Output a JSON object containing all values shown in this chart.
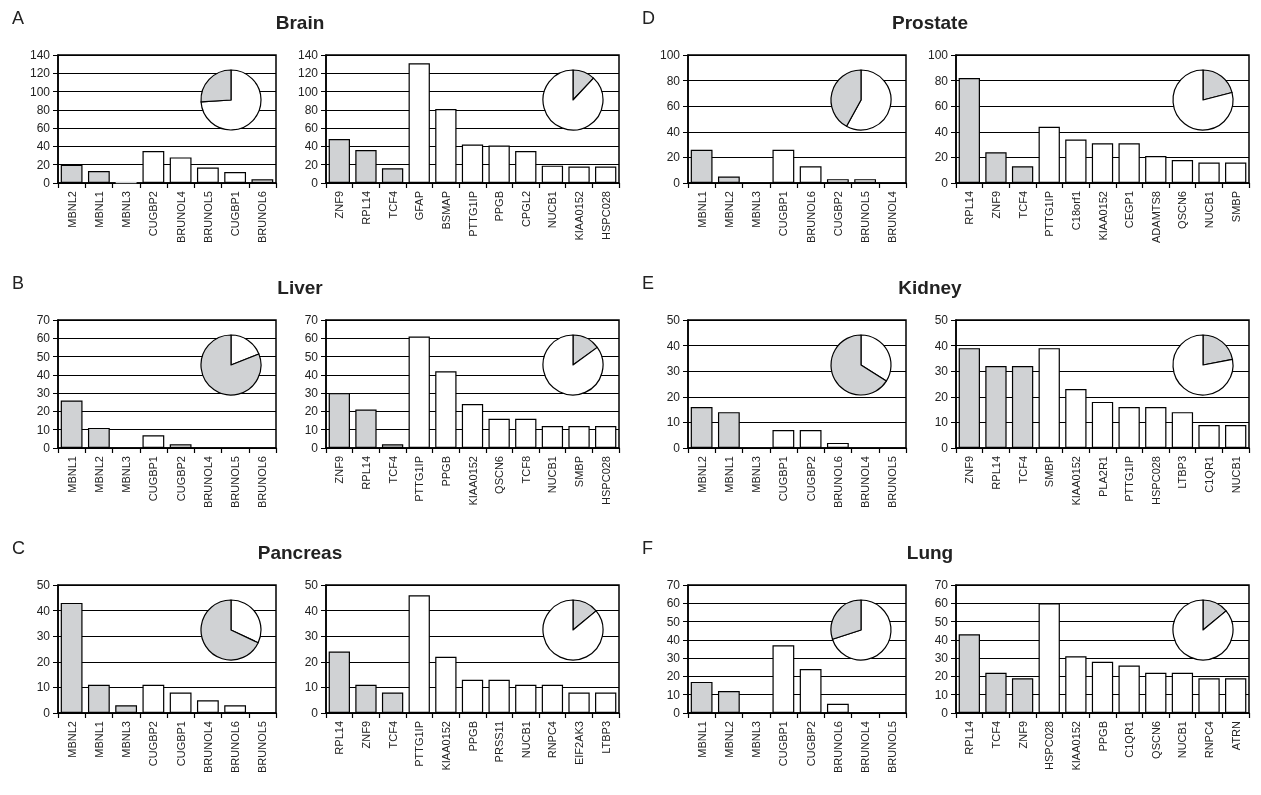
{
  "chart_data": [
    {
      "type": "bar",
      "title": "Brain",
      "annotations": [
        "A"
      ],
      "categories": [
        "MBNL2",
        "MBNL1",
        "MBNL3",
        "CUGBP2",
        "BRUNOL4",
        "BRUNOL5",
        "CUGBP1",
        "BRUNOL6"
      ],
      "values": [
        20,
        13,
        1,
        35,
        28,
        17,
        12,
        4
      ],
      "colors": [
        "#d0d2d4",
        "#d0d2d4",
        "#d0d2d4",
        "#ffffff",
        "#ffffff",
        "#ffffff",
        "#ffffff",
        "#ffffff"
      ],
      "ylim": [
        0,
        140
      ],
      "yticks": [
        0,
        20,
        40,
        60,
        80,
        100,
        120,
        140
      ],
      "grid": "y"
    },
    {
      "type": "pie",
      "categories": [
        null,
        null
      ],
      "values": [
        74,
        26
      ],
      "colors": [
        "#ffffff",
        "#d0d2d4"
      ]
    },
    {
      "type": "bar",
      "categories": [
        "ZNF9",
        "RPL14",
        "TCF4",
        "GFAP",
        "BSMAP",
        "PTTG1IP",
        "PPGB",
        "CPGL2",
        "NUCB1",
        "KIAA0152",
        "HSPC028"
      ],
      "values": [
        48,
        36,
        16,
        131,
        81,
        42,
        41,
        35,
        19,
        18,
        18
      ],
      "colors": [
        "#d0d2d4",
        "#d0d2d4",
        "#d0d2d4",
        "#ffffff",
        "#ffffff",
        "#ffffff",
        "#ffffff",
        "#ffffff",
        "#ffffff",
        "#ffffff",
        "#ffffff"
      ],
      "ylim": [
        0,
        140
      ],
      "yticks": [
        0,
        20,
        40,
        60,
        80,
        100,
        120,
        140
      ],
      "grid": "y"
    },
    {
      "type": "pie",
      "categories": [
        null,
        null
      ],
      "values": [
        12,
        88
      ],
      "colors": [
        "#d0d2d4",
        "#ffffff"
      ]
    },
    {
      "type": "bar",
      "title": "Prostate",
      "annotations": [
        "D"
      ],
      "categories": [
        "MBNL1",
        "MBNL2",
        "MBNL3",
        "CUGBP1",
        "BRUNOL6",
        "CUGBP2",
        "BRUNOL5",
        "BRUNOL4"
      ],
      "values": [
        26,
        5,
        0,
        26,
        13,
        3,
        3,
        0
      ],
      "colors": [
        "#d0d2d4",
        "#d0d2d4",
        "#d0d2d4",
        "#ffffff",
        "#ffffff",
        "#ffffff",
        "#ffffff",
        "#ffffff"
      ],
      "ylim": [
        0,
        100
      ],
      "yticks": [
        0,
        20,
        40,
        60,
        80,
        100
      ],
      "grid": "y"
    },
    {
      "type": "pie",
      "categories": [
        null,
        null
      ],
      "values": [
        58,
        42
      ],
      "colors": [
        "#ffffff",
        "#d0d2d4"
      ]
    },
    {
      "type": "bar",
      "categories": [
        "RPL14",
        "ZNF9",
        "TCF4",
        "PTTG1IP",
        "C18orf1",
        "KIAA0152",
        "CEGP1",
        "ADAMTS8",
        "QSCN6",
        "NUCB1",
        "SMBP"
      ],
      "values": [
        82,
        24,
        13,
        44,
        34,
        31,
        31,
        21,
        18,
        16,
        16
      ],
      "colors": [
        "#d0d2d4",
        "#d0d2d4",
        "#d0d2d4",
        "#ffffff",
        "#ffffff",
        "#ffffff",
        "#ffffff",
        "#ffffff",
        "#ffffff",
        "#ffffff",
        "#ffffff"
      ],
      "ylim": [
        0,
        100
      ],
      "yticks": [
        0,
        20,
        40,
        60,
        80,
        100
      ],
      "grid": "y"
    },
    {
      "type": "pie",
      "categories": [
        null,
        null
      ],
      "values": [
        21,
        79
      ],
      "colors": [
        "#d0d2d4",
        "#ffffff"
      ]
    },
    {
      "type": "bar",
      "title": "Liver",
      "annotations": [
        "B"
      ],
      "categories": [
        "MBNL1",
        "MBNL2",
        "MBNL3",
        "CUGBP1",
        "CUGBP2",
        "BRUNOL4",
        "BRUNOL5",
        "BRUNOL6"
      ],
      "values": [
        26,
        11,
        0,
        7,
        2,
        0,
        0,
        0
      ],
      "colors": [
        "#d0d2d4",
        "#d0d2d4",
        "#d0d2d4",
        "#ffffff",
        "#ffffff",
        "#ffffff",
        "#ffffff",
        "#ffffff"
      ],
      "ylim": [
        0,
        70
      ],
      "yticks": [
        0,
        10,
        20,
        30,
        40,
        50,
        60,
        70
      ],
      "grid": "y"
    },
    {
      "type": "pie",
      "categories": [
        null,
        null
      ],
      "values": [
        19,
        81
      ],
      "colors": [
        "#ffffff",
        "#d0d2d4"
      ]
    },
    {
      "type": "bar",
      "categories": [
        "ZNF9",
        "RPL14",
        "TCF4",
        "PTTG1IP",
        "PPGB",
        "KIAA0152",
        "QSCN6",
        "TCF8",
        "NUCB1",
        "SMBP",
        "HSPC028"
      ],
      "values": [
        30,
        21,
        2,
        61,
        42,
        24,
        16,
        16,
        12,
        12,
        12
      ],
      "colors": [
        "#d0d2d4",
        "#d0d2d4",
        "#d0d2d4",
        "#ffffff",
        "#ffffff",
        "#ffffff",
        "#ffffff",
        "#ffffff",
        "#ffffff",
        "#ffffff",
        "#ffffff"
      ],
      "ylim": [
        0,
        70
      ],
      "yticks": [
        0,
        10,
        20,
        30,
        40,
        50,
        60,
        70
      ],
      "grid": "y"
    },
    {
      "type": "pie",
      "categories": [
        null,
        null
      ],
      "values": [
        15,
        85
      ],
      "colors": [
        "#d0d2d4",
        "#ffffff"
      ]
    },
    {
      "type": "bar",
      "title": "Kidney",
      "annotations": [
        "E"
      ],
      "categories": [
        "MBNL2",
        "MBNL1",
        "MBNL3",
        "CUGBP1",
        "CUGBP2",
        "BRUNOL6",
        "BRUNOL4",
        "BRUNOL5"
      ],
      "values": [
        16,
        14,
        0,
        7,
        7,
        2,
        0,
        0
      ],
      "colors": [
        "#d0d2d4",
        "#d0d2d4",
        "#d0d2d4",
        "#ffffff",
        "#ffffff",
        "#ffffff",
        "#ffffff",
        "#ffffff"
      ],
      "ylim": [
        0,
        50
      ],
      "yticks": [
        0,
        10,
        20,
        30,
        40,
        50
      ],
      "grid": "y"
    },
    {
      "type": "pie",
      "categories": [
        null,
        null
      ],
      "values": [
        34,
        66
      ],
      "colors": [
        "#ffffff",
        "#d0d2d4"
      ]
    },
    {
      "type": "bar",
      "categories": [
        "ZNF9",
        "RPL14",
        "TCF4",
        "SMBP",
        "KIAA0152",
        "PLA2R1",
        "PTTG1IP",
        "HSPC028",
        "LTBP3",
        "C1QR1",
        "NUCB1"
      ],
      "values": [
        39,
        32,
        32,
        39,
        23,
        18,
        16,
        16,
        14,
        9,
        9
      ],
      "colors": [
        "#d0d2d4",
        "#d0d2d4",
        "#d0d2d4",
        "#ffffff",
        "#ffffff",
        "#ffffff",
        "#ffffff",
        "#ffffff",
        "#ffffff",
        "#ffffff",
        "#ffffff"
      ],
      "ylim": [
        0,
        50
      ],
      "yticks": [
        0,
        10,
        20,
        30,
        40,
        50
      ],
      "grid": "y"
    },
    {
      "type": "pie",
      "categories": [
        null,
        null
      ],
      "values": [
        22,
        78
      ],
      "colors": [
        "#d0d2d4",
        "#ffffff"
      ]
    },
    {
      "type": "bar",
      "title": "Pancreas",
      "annotations": [
        "C"
      ],
      "categories": [
        "MBNL2",
        "MBNL1",
        "MBNL3",
        "CUGBP2",
        "CUGBP1",
        "BRUNOL4",
        "BRUNOL6",
        "BRUNOL5"
      ],
      "values": [
        43,
        11,
        3,
        11,
        8,
        5,
        3,
        0
      ],
      "colors": [
        "#d0d2d4",
        "#d0d2d4",
        "#d0d2d4",
        "#ffffff",
        "#ffffff",
        "#ffffff",
        "#ffffff",
        "#ffffff"
      ],
      "ylim": [
        0,
        50
      ],
      "yticks": [
        0,
        10,
        20,
        30,
        40,
        50
      ],
      "grid": "y"
    },
    {
      "type": "pie",
      "categories": [
        null,
        null
      ],
      "values": [
        32,
        68
      ],
      "colors": [
        "#ffffff",
        "#d0d2d4"
      ]
    },
    {
      "type": "bar",
      "categories": [
        "RPL14",
        "ZNF9",
        "TCF4",
        "PTTG1IP",
        "KIAA0152",
        "PPGB",
        "PRSS11",
        "NUCB1",
        "RNPC4",
        "EIF2AK3",
        "LTBP3"
      ],
      "values": [
        24,
        11,
        8,
        46,
        22,
        13,
        13,
        11,
        11,
        8,
        8
      ],
      "colors": [
        "#d0d2d4",
        "#d0d2d4",
        "#d0d2d4",
        "#ffffff",
        "#ffffff",
        "#ffffff",
        "#ffffff",
        "#ffffff",
        "#ffffff",
        "#ffffff",
        "#ffffff"
      ],
      "ylim": [
        0,
        50
      ],
      "yticks": [
        0,
        10,
        20,
        30,
        40,
        50
      ],
      "grid": "y"
    },
    {
      "type": "pie",
      "categories": [
        null,
        null
      ],
      "values": [
        14,
        86
      ],
      "colors": [
        "#d0d2d4",
        "#ffffff"
      ]
    },
    {
      "type": "bar",
      "title": "Lung",
      "annotations": [
        "F"
      ],
      "categories": [
        "MBNL1",
        "MBNL2",
        "MBNL3",
        "CUGBP1",
        "CUGBP2",
        "BRUNOL6",
        "BRUNOL4",
        "BRUNOL5"
      ],
      "values": [
        17,
        12,
        0,
        37,
        24,
        5,
        0,
        0
      ],
      "colors": [
        "#d0d2d4",
        "#d0d2d4",
        "#d0d2d4",
        "#ffffff",
        "#ffffff",
        "#ffffff",
        "#ffffff",
        "#ffffff"
      ],
      "ylim": [
        0,
        70
      ],
      "yticks": [
        0,
        10,
        20,
        30,
        40,
        50,
        60,
        70
      ],
      "grid": "y"
    },
    {
      "type": "pie",
      "categories": [
        null,
        null
      ],
      "values": [
        70,
        30
      ],
      "colors": [
        "#ffffff",
        "#d0d2d4"
      ]
    },
    {
      "type": "bar",
      "categories": [
        "RPL14",
        "TCF4",
        "ZNF9",
        "HSPC028",
        "KIAA0152",
        "PPGB",
        "C1QR1",
        "QSCN6",
        "NUCB1",
        "RNPC4",
        "ATRN"
      ],
      "values": [
        43,
        22,
        19,
        60,
        31,
        28,
        26,
        22,
        22,
        19,
        19
      ],
      "colors": [
        "#d0d2d4",
        "#d0d2d4",
        "#d0d2d4",
        "#ffffff",
        "#ffffff",
        "#ffffff",
        "#ffffff",
        "#ffffff",
        "#ffffff",
        "#ffffff",
        "#ffffff"
      ],
      "ylim": [
        0,
        70
      ],
      "yticks": [
        0,
        10,
        20,
        30,
        40,
        50,
        60,
        70
      ],
      "grid": "y"
    },
    {
      "type": "pie",
      "categories": [
        null,
        null
      ],
      "values": [
        14,
        86
      ],
      "colors": [
        "#d0d2d4",
        "#ffffff"
      ]
    }
  ]
}
